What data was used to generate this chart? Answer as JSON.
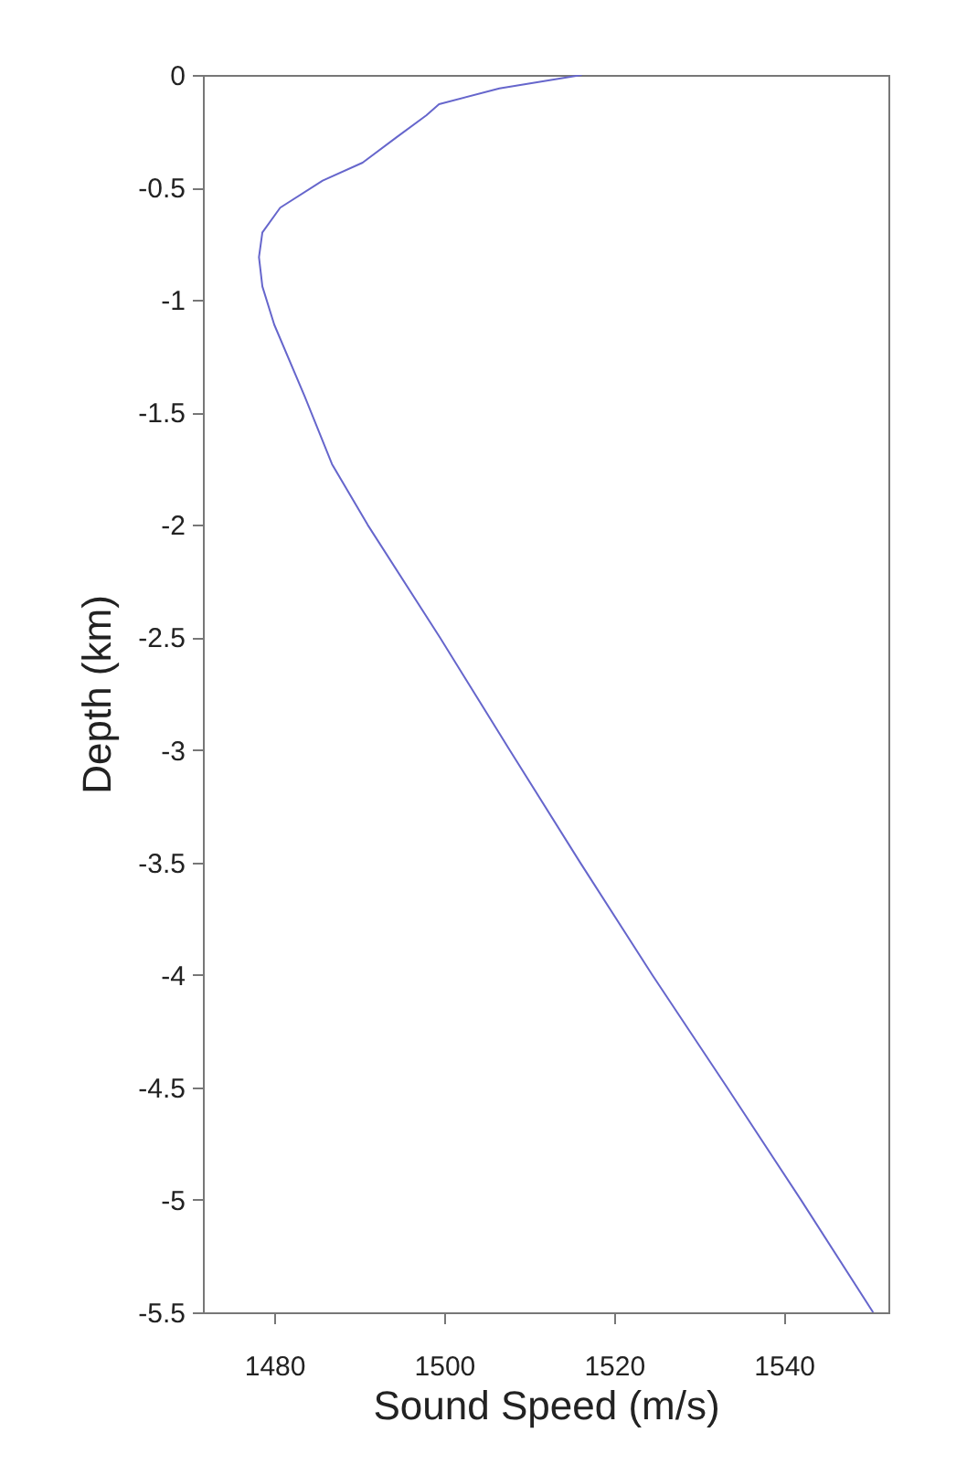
{
  "chart_data": {
    "type": "line",
    "xlabel": "Sound Speed (m/s)",
    "ylabel": "Depth (km)",
    "xlim": [
      1471.6,
      1552.3
    ],
    "xticks": [
      1480,
      1500,
      1520,
      1540
    ],
    "ylim": [
      -5.5,
      0
    ],
    "yticks": [
      -5.5,
      -5,
      -4.5,
      -4,
      -3.5,
      -3,
      -2.5,
      -2,
      -1.5,
      -1,
      -0.5,
      0
    ],
    "grid": false,
    "series": [
      {
        "color": "#6666cc",
        "x": [
          1516.2,
          1506.5,
          1499.4,
          1497.9,
          1494.3,
          1490.4,
          1485.7,
          1480.7,
          1478.6,
          1478.2,
          1478.6,
          1480,
          1483.6,
          1486.8,
          1491,
          1499.5,
          1507.7,
          1516,
          1524.5,
          1533.3,
          1542,
          1550.5
        ],
        "values": [
          0,
          -0.06,
          -0.13,
          -0.18,
          -0.28,
          -0.39,
          -0.47,
          -0.59,
          -0.7,
          -0.81,
          -0.94,
          -1.11,
          -1.43,
          -1.73,
          -2,
          -2.5,
          -3,
          -3.5,
          -4,
          -4.5,
          -5,
          -5.5
        ]
      }
    ]
  }
}
